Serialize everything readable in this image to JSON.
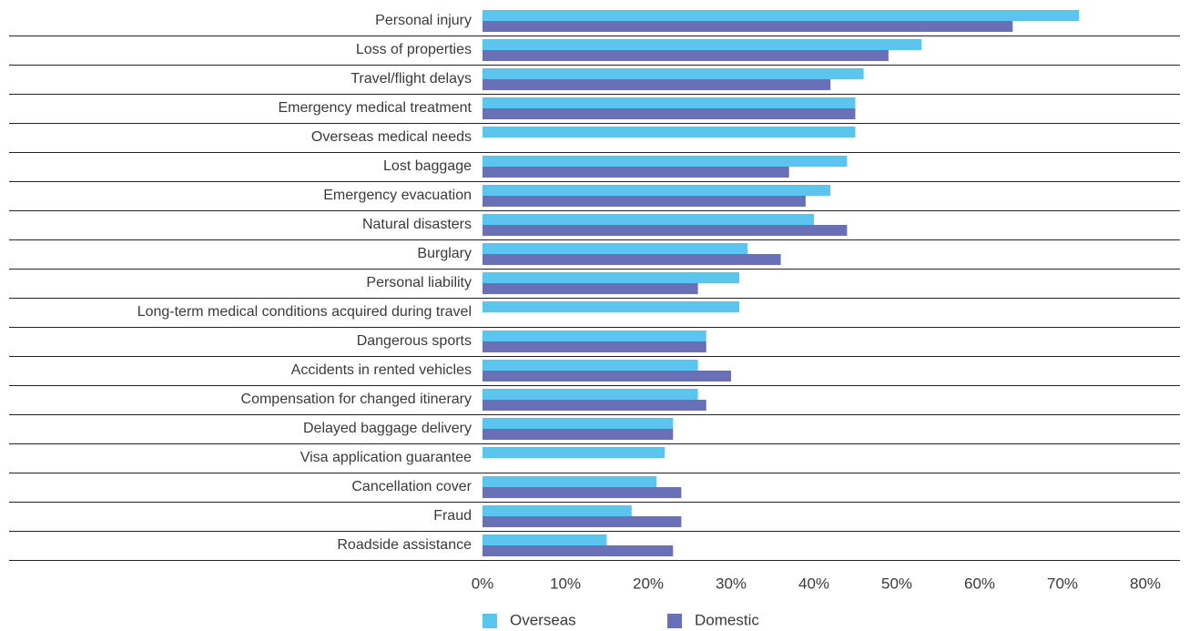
{
  "chart_data": {
    "type": "bar",
    "orientation": "horizontal",
    "categories": [
      "Personal injury",
      "Loss of properties",
      "Travel/flight delays",
      "Emergency medical treatment",
      "Overseas medical needs",
      "Lost baggage",
      "Emergency evacuation",
      "Natural disasters",
      "Burglary",
      "Personal liability",
      "Long-term medical conditions acquired during travel",
      "Dangerous sports",
      "Accidents in rented vehicles",
      "Compensation for changed itinerary",
      "Delayed baggage delivery",
      "Visa application guarantee",
      "Cancellation cover",
      "Fraud",
      "Roadside assistance"
    ],
    "series": [
      {
        "name": "Overseas",
        "color": "#5bc5f2",
        "values": [
          72,
          53,
          46,
          45,
          45,
          44,
          42,
          40,
          32,
          31,
          31,
          27,
          26,
          26,
          23,
          22,
          21,
          18,
          15
        ]
      },
      {
        "name": "Domestic",
        "color": "#6a70b8",
        "values": [
          64,
          49,
          42,
          45,
          null,
          37,
          39,
          44,
          36,
          26,
          null,
          27,
          30,
          27,
          23,
          null,
          24,
          24,
          23
        ]
      }
    ],
    "xlim": [
      0,
      80
    ],
    "xticks": [
      0,
      10,
      20,
      30,
      40,
      50,
      60,
      70,
      80
    ],
    "tick_suffix": "%",
    "title": "",
    "xlabel": "",
    "ylabel": "",
    "grid": false,
    "legend_position": "bottom-center"
  }
}
